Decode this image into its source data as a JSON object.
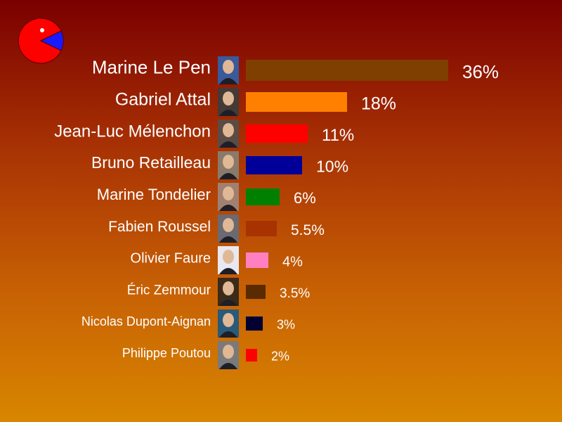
{
  "logo": {
    "icon": "pacman-pie-icon",
    "colors": {
      "body": "#ff0000",
      "wedge": "#1a1aff",
      "eye": "#ffffff",
      "outline": "#5a0000"
    }
  },
  "chart_data": {
    "type": "bar",
    "orientation": "horizontal",
    "unit": "%",
    "categories": [
      "Marine Le Pen",
      "Gabriel Attal",
      "Jean-Luc Mélenchon",
      "Bruno Retailleau",
      "Marine Tondelier",
      "Fabien Roussel",
      "Olivier Faure",
      "Éric Zemmour",
      "Nicolas Dupont-Aignan",
      "Philippe Poutou"
    ],
    "values": [
      36,
      18,
      11,
      10,
      6,
      5.5,
      4,
      3.5,
      3,
      2
    ],
    "value_labels": [
      "36%",
      "18%",
      "11%",
      "10%",
      "6%",
      "5.5%",
      "4%",
      "3.5%",
      "3%",
      "2%"
    ],
    "colors": [
      "#7f3f00",
      "#ff8000",
      "#ff0000",
      "#000099",
      "#008000",
      "#a83200",
      "#ff80c0",
      "#5a2a00",
      "#000033",
      "#ff0000"
    ],
    "photo_tints": [
      "#3a5a9a",
      "#443a36",
      "#5a4c44",
      "#8a7a6a",
      "#a08070",
      "#6a6a70",
      "#e8e8f0",
      "#3a2a1a",
      "#2a5a7a",
      "#7a7a7a"
    ],
    "xlim": [
      0,
      36
    ],
    "grid": false,
    "legend": "none"
  }
}
